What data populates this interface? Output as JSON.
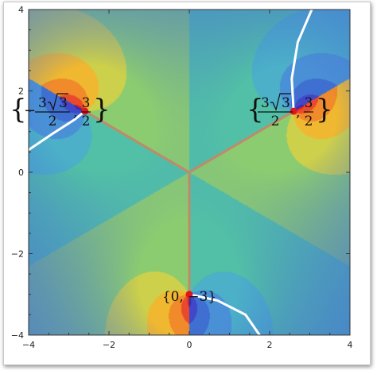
{
  "chart_data": {
    "type": "heatmap",
    "title": "",
    "xlabel": "",
    "ylabel": "",
    "xlim": [
      -4,
      4
    ],
    "ylim": [
      -4,
      4
    ],
    "x_ticks": [
      -4,
      -2,
      0,
      2,
      4
    ],
    "y_ticks": [
      -4,
      -2,
      0,
      2,
      4
    ],
    "x_tick_labels": [
      "−4",
      "−2",
      "0",
      "2",
      "4"
    ],
    "y_tick_labels": [
      "−4",
      "−2",
      "0",
      "2",
      "4"
    ],
    "color_scheme": "rainbow contour bands (blue to red)",
    "points": [
      {
        "x": -2.598,
        "y": 1.5,
        "label": "{− 3√3/2 , 3/2}",
        "color": "#e0141e"
      },
      {
        "x": 2.598,
        "y": 1.5,
        "label": "{3√3/2 , 3/2}",
        "color": "#e0141e"
      },
      {
        "x": 0,
        "y": -3,
        "label": "{0, −3}",
        "color": "#e0141e"
      }
    ],
    "center": {
      "x": 0,
      "y": 0
    },
    "segment_color": "#c08a68",
    "branch_cut_color": "#ffffff"
  },
  "labels": {
    "p_left": {
      "brace_open": "{",
      "minus": "−",
      "num": "3",
      "rad": "3",
      "den": "2",
      "comma": ",",
      "y_num": "3",
      "y_den": "2",
      "brace_close": "}"
    },
    "p_right": {
      "brace_open": "{",
      "num": "3",
      "rad": "3",
      "den": "2",
      "comma": ",",
      "y_num": "3",
      "y_den": "2",
      "brace_close": "}"
    },
    "p_bottom": "{0, −3}"
  }
}
